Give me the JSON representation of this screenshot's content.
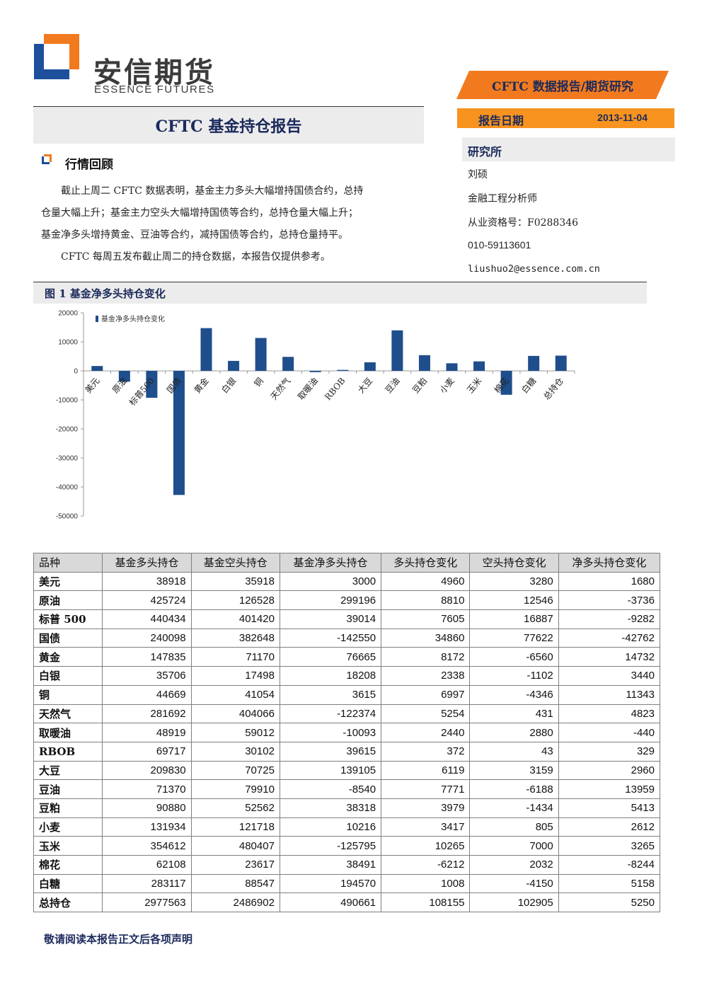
{
  "logo": {
    "cn": "安信期货",
    "en": "ESSENCE FUTURES"
  },
  "banner": {
    "title": "CFTC 数据报告/期货研究"
  },
  "report_date": {
    "label": "报告日期",
    "value": "2013-11-04"
  },
  "title": "CFTC 基金持仓报告",
  "research": {
    "heading": "研究所",
    "name": "刘硕",
    "role": "金融工程分析师",
    "license": "从业资格号：F0288346",
    "phone": "010-59113601",
    "email": "liushuo2@essence.com.cn"
  },
  "section": {
    "title": "行情回顾",
    "para1_lines": [
      "　　截止上周二 CFTC 数据表明，基金主力多头大幅增持国债合约，总持",
      "仓量大幅上升；基金主力空头大幅增持国债等合约，总持仓量大幅上升；",
      "基金净多头增持黄金、豆油等合约，减持国债等合约，总持仓量持平。"
    ],
    "para2": "　　CFTC 每周五发布截止周二的持仓数据，本报告仅提供参考。"
  },
  "figure": {
    "title": "图 1  基金净多头持仓变化"
  },
  "chart_data": {
    "type": "bar",
    "categories": [
      "美元",
      "原油",
      "标普500",
      "国债",
      "黄金",
      "白银",
      "铜",
      "天然气",
      "取暖油",
      "RBOB",
      "大豆",
      "豆油",
      "豆粕",
      "小麦",
      "玉米",
      "棉花",
      "白糖",
      "总持仓"
    ],
    "series": [
      {
        "name": "基金净多头持仓变化",
        "values": [
          1680,
          -3736,
          -9282,
          -42762,
          14732,
          3440,
          11343,
          4823,
          -440,
          329,
          2960,
          13959,
          5413,
          2612,
          3265,
          -8244,
          5158,
          5250
        ]
      }
    ],
    "ylim": [
      -50000,
      20000
    ],
    "yticks": [
      20000,
      10000,
      0,
      -10000,
      -20000,
      -30000,
      -40000,
      -50000
    ],
    "legend": "top-left",
    "bar_color": "#1f4e8c"
  },
  "table": {
    "headers": [
      "品种",
      "基金多头持仓",
      "基金空头持仓",
      "基金净多头持仓",
      "多头持仓变化",
      "空头持仓变化",
      "净多头持仓变化"
    ],
    "rows": [
      [
        "美元",
        "38918",
        "35918",
        "3000",
        "4960",
        "3280",
        "1680"
      ],
      [
        "原油",
        "425724",
        "126528",
        "299196",
        "8810",
        "12546",
        "-3736"
      ],
      [
        "标普 500",
        "440434",
        "401420",
        "39014",
        "7605",
        "16887",
        "-9282"
      ],
      [
        "国债",
        "240098",
        "382648",
        "-142550",
        "34860",
        "77622",
        "-42762"
      ],
      [
        "黄金",
        "147835",
        "71170",
        "76665",
        "8172",
        "-6560",
        "14732"
      ],
      [
        "白银",
        "35706",
        "17498",
        "18208",
        "2338",
        "-1102",
        "3440"
      ],
      [
        "铜",
        "44669",
        "41054",
        "3615",
        "6997",
        "-4346",
        "11343"
      ],
      [
        "天然气",
        "281692",
        "404066",
        "-122374",
        "5254",
        "431",
        "4823"
      ],
      [
        "取暖油",
        "48919",
        "59012",
        "-10093",
        "2440",
        "2880",
        "-440"
      ],
      [
        "RBOB",
        "69717",
        "30102",
        "39615",
        "372",
        "43",
        "329"
      ],
      [
        "大豆",
        "209830",
        "70725",
        "139105",
        "6119",
        "3159",
        "2960"
      ],
      [
        "豆油",
        "71370",
        "79910",
        "-8540",
        "7771",
        "-6188",
        "13959"
      ],
      [
        "豆粕",
        "90880",
        "52562",
        "38318",
        "3979",
        "-1434",
        "5413"
      ],
      [
        "小麦",
        "131934",
        "121718",
        "10216",
        "3417",
        "805",
        "2612"
      ],
      [
        "玉米",
        "354612",
        "480407",
        "-125795",
        "10265",
        "7000",
        "3265"
      ],
      [
        "棉花",
        "62108",
        "23617",
        "38491",
        "-6212",
        "2032",
        "-8244"
      ],
      [
        "白糖",
        "283117",
        "88547",
        "194570",
        "1008",
        "-4150",
        "5158"
      ],
      [
        "总持仓",
        "2977563",
        "2486902",
        "490661",
        "108155",
        "102905",
        "5250"
      ]
    ]
  },
  "footer": "敬请阅读本报告正文后各项声明",
  "colors": {
    "navy": "#1b2a5c",
    "orange": "#f27a1e",
    "blue": "#1f4e8c"
  }
}
